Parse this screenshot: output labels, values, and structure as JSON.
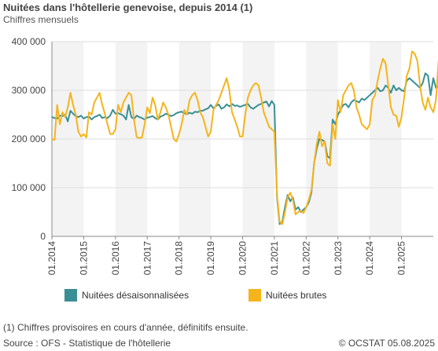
{
  "chart_data": {
    "type": "line",
    "title": "Nuitées dans l'hôtellerie genevoise, depuis 2014 (1)",
    "subtitle": "Chiffres mensuels",
    "ylim": [
      0,
      400000
    ],
    "yticks": [
      0,
      100000,
      200000,
      300000,
      400000
    ],
    "ytick_labels": [
      "0",
      "100 000",
      "200 000",
      "300 000",
      "400 000"
    ],
    "xlim": [
      2014,
      2026
    ],
    "xtick_labels": [
      "01.2014",
      "01.2015",
      "01.2016",
      "01.2017",
      "01.2018",
      "01.2019",
      "01.2020",
      "01.2021",
      "01.2022",
      "01.2023",
      "01.2024",
      "01.2025"
    ],
    "grid": "horizontal",
    "alternating_year_bands": true,
    "legend_position": "bottom",
    "start": "2014-01",
    "series": [
      {
        "name": "Nuitées désaisonnalisées",
        "color": "#3a8f95",
        "values": [
          245000,
          243000,
          242000,
          248000,
          247000,
          250000,
          236000,
          258000,
          252000,
          247000,
          245000,
          248000,
          242000,
          245000,
          246000,
          240000,
          245000,
          247000,
          250000,
          243000,
          245000,
          243000,
          248000,
          260000,
          252000,
          253000,
          251000,
          248000,
          240000,
          270000,
          245000,
          241000,
          248000,
          245000,
          243000,
          240000,
          244000,
          245000,
          247000,
          243000,
          240000,
          246000,
          248000,
          252000,
          250000,
          247000,
          249000,
          253000,
          255000,
          256000,
          253000,
          251000,
          254000,
          252000,
          256000,
          255000,
          258000,
          258000,
          261000,
          263000,
          270000,
          263000,
          268000,
          271000,
          262000,
          265000,
          271000,
          267000,
          272000,
          268000,
          269000,
          266000,
          268000,
          270000,
          272000,
          265000,
          262000,
          266000,
          270000,
          272000,
          275000,
          277000,
          267000,
          278000,
          270000,
          80000,
          25000,
          30000,
          60000,
          85000,
          72000,
          80000,
          55000,
          60000,
          50000,
          55000,
          60000,
          70000,
          90000,
          150000,
          180000,
          200000,
          198000,
          195000,
          165000,
          160000,
          240000,
          230000,
          250000,
          260000,
          270000,
          272000,
          265000,
          275000,
          280000,
          278000,
          275000,
          283000,
          280000,
          285000,
          290000,
          295000,
          300000,
          305000,
          298000,
          300000,
          310000,
          305000,
          295000,
          310000,
          300000,
          305000,
          300000,
          298000,
          320000,
          325000,
          320000,
          315000,
          310000,
          305000,
          315000,
          335000,
          330000,
          290000,
          325000,
          305000,
          308000
        ]
      },
      {
        "name": "Nuitées brutes",
        "color": "#f5b41c",
        "values": [
          200000,
          198000,
          270000,
          230000,
          255000,
          245000,
          265000,
          295000,
          270000,
          250000,
          215000,
          205000,
          210000,
          203000,
          255000,
          250000,
          275000,
          285000,
          295000,
          270000,
          252000,
          230000,
          210000,
          210000,
          220000,
          270000,
          255000,
          275000,
          285000,
          295000,
          290000,
          240000,
          204000,
          202000,
          203000,
          230000,
          265000,
          253000,
          285000,
          270000,
          240000,
          255000,
          275000,
          265000,
          250000,
          225000,
          200000,
          195000,
          210000,
          230000,
          260000,
          250000,
          280000,
          290000,
          295000,
          280000,
          255000,
          245000,
          225000,
          205000,
          215000,
          260000,
          270000,
          280000,
          295000,
          310000,
          325000,
          300000,
          255000,
          240000,
          225000,
          205000,
          205000,
          250000,
          285000,
          300000,
          310000,
          315000,
          310000,
          285000,
          255000,
          240000,
          225000,
          220000,
          215000,
          85000,
          30000,
          25000,
          50000,
          80000,
          90000,
          75000,
          45000,
          50000,
          52000,
          48000,
          60000,
          75000,
          95000,
          150000,
          190000,
          215000,
          185000,
          195000,
          150000,
          145000,
          230000,
          200000,
          280000,
          255000,
          290000,
          300000,
          310000,
          315000,
          300000,
          265000,
          250000,
          230000,
          225000,
          220000,
          230000,
          280000,
          290000,
          320000,
          345000,
          365000,
          355000,
          310000,
          265000,
          250000,
          248000,
          225000,
          245000,
          285000,
          330000,
          345000,
          380000,
          375000,
          360000,
          310000,
          275000,
          260000,
          285000,
          265000,
          255000,
          280000,
          360000
        ]
      }
    ]
  },
  "footnote": "(1) Chiffres provisoires en cours d'année, définitifs ensuite.",
  "source": "Source : OFS - Statistique de l'hôtellerie",
  "copyright": "© OCSTAT 05.08.2025"
}
